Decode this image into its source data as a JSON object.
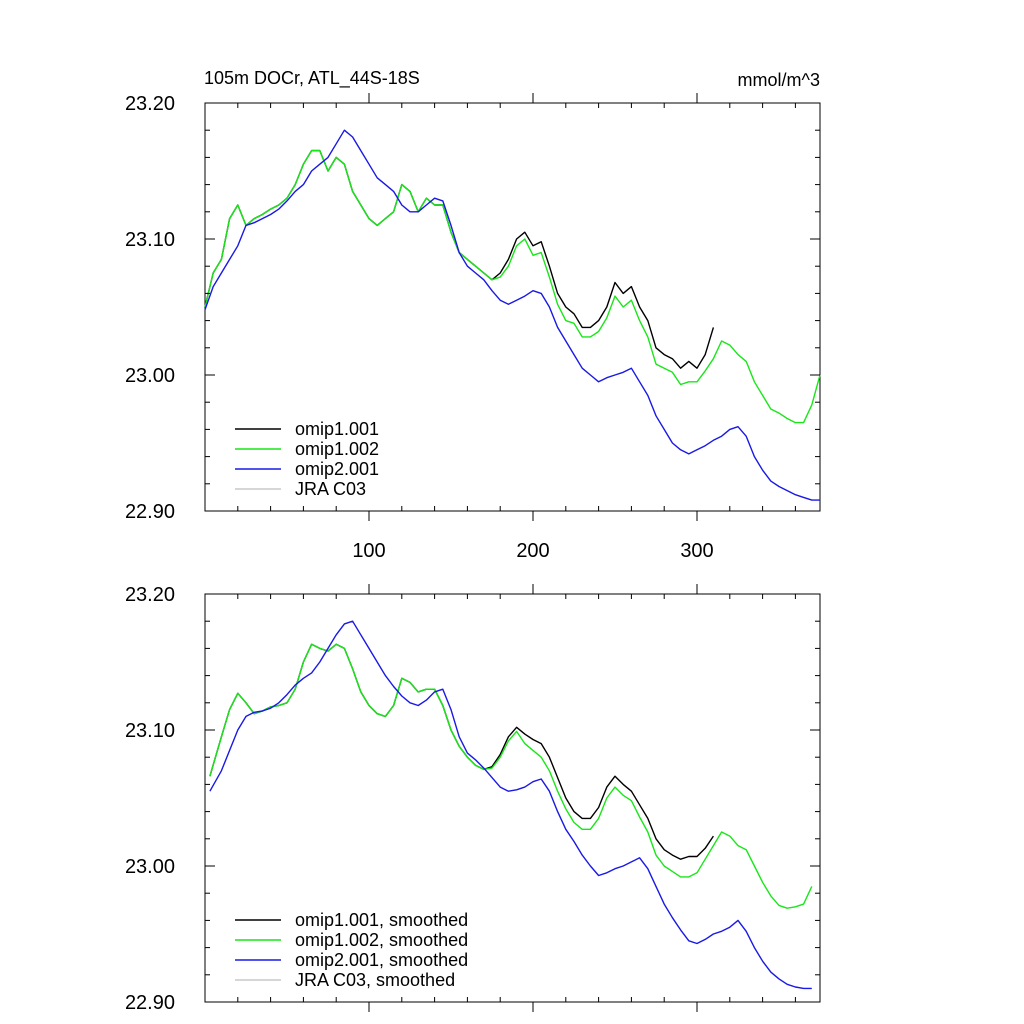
{
  "chart_data": [
    {
      "type": "line",
      "panel": "top",
      "title_left": "105m DOCr, ATL_44S-18S",
      "title_right": "mmol/m^3",
      "xlabel": "",
      "ylabel": "",
      "xlim": [
        0,
        375
      ],
      "ylim": [
        22.9,
        23.2
      ],
      "xticks": [
        100,
        200,
        300
      ],
      "xtick_labels": [
        "100",
        "200",
        "300"
      ],
      "yticks": [
        22.9,
        23.0,
        23.1,
        23.2
      ],
      "ytick_labels": [
        "22.90",
        "23.00",
        "23.10",
        "23.20"
      ],
      "legend_position": "bottom-left",
      "series": [
        {
          "name": "omip1.001",
          "color": "#000000",
          "x": [
            0,
            5,
            10,
            15,
            20,
            25,
            30,
            35,
            40,
            45,
            50,
            55,
            60,
            65,
            70,
            75,
            80,
            85,
            90,
            95,
            100,
            105,
            110,
            115,
            120,
            125,
            130,
            135,
            140,
            145,
            150,
            155,
            160,
            165,
            170,
            175,
            180,
            185,
            190,
            195,
            200,
            205,
            210,
            215,
            220,
            225,
            230,
            235,
            240,
            245,
            250,
            255,
            260,
            265,
            270,
            275,
            280,
            285,
            290,
            295,
            300,
            305,
            310
          ],
          "y": [
            23.05,
            23.075,
            23.085,
            23.115,
            23.125,
            23.11,
            23.115,
            23.118,
            23.122,
            23.125,
            23.13,
            23.14,
            23.155,
            23.165,
            23.165,
            23.15,
            23.16,
            23.155,
            23.135,
            23.125,
            23.115,
            23.11,
            23.115,
            23.12,
            23.14,
            23.135,
            23.12,
            23.13,
            23.125,
            23.125,
            23.105,
            23.09,
            23.085,
            23.08,
            23.075,
            23.07,
            23.075,
            23.085,
            23.1,
            23.105,
            23.095,
            23.098,
            23.08,
            23.06,
            23.05,
            23.045,
            23.035,
            23.035,
            23.04,
            23.05,
            23.068,
            23.06,
            23.065,
            23.05,
            23.04,
            23.02,
            23.015,
            23.012,
            23.005,
            23.01,
            23.005,
            23.015,
            23.035
          ]
        },
        {
          "name": "omip1.002",
          "color": "#19e619",
          "x": [
            0,
            5,
            10,
            15,
            20,
            25,
            30,
            35,
            40,
            45,
            50,
            55,
            60,
            65,
            70,
            75,
            80,
            85,
            90,
            95,
            100,
            105,
            110,
            115,
            120,
            125,
            130,
            135,
            140,
            145,
            150,
            155,
            160,
            165,
            170,
            175,
            180,
            185,
            190,
            195,
            200,
            205,
            210,
            215,
            220,
            225,
            230,
            235,
            240,
            245,
            250,
            255,
            260,
            265,
            270,
            275,
            280,
            285,
            290,
            295,
            300,
            305,
            310,
            315,
            320,
            325,
            330,
            335,
            340,
            345,
            350,
            355,
            360,
            365,
            370,
            375
          ],
          "y": [
            23.05,
            23.075,
            23.085,
            23.115,
            23.125,
            23.11,
            23.115,
            23.118,
            23.122,
            23.125,
            23.13,
            23.14,
            23.155,
            23.165,
            23.165,
            23.15,
            23.16,
            23.155,
            23.135,
            23.125,
            23.115,
            23.11,
            23.115,
            23.12,
            23.14,
            23.135,
            23.12,
            23.13,
            23.125,
            23.125,
            23.105,
            23.09,
            23.085,
            23.08,
            23.075,
            23.07,
            23.072,
            23.08,
            23.095,
            23.1,
            23.088,
            23.09,
            23.072,
            23.052,
            23.04,
            23.038,
            23.028,
            23.028,
            23.032,
            23.042,
            23.058,
            23.05,
            23.055,
            23.04,
            23.028,
            23.008,
            23.005,
            23.002,
            22.993,
            22.995,
            22.995,
            23.003,
            23.012,
            23.025,
            23.022,
            23.015,
            23.01,
            22.995,
            22.985,
            22.975,
            22.972,
            22.968,
            22.965,
            22.965,
            22.978,
            23.0
          ]
        },
        {
          "name": "omip2.001",
          "color": "#1919e6",
          "x": [
            0,
            5,
            10,
            15,
            20,
            25,
            30,
            35,
            40,
            45,
            50,
            55,
            60,
            65,
            70,
            75,
            80,
            85,
            90,
            95,
            100,
            105,
            110,
            115,
            120,
            125,
            130,
            135,
            140,
            145,
            150,
            155,
            160,
            165,
            170,
            175,
            180,
            185,
            190,
            195,
            200,
            205,
            210,
            215,
            220,
            225,
            230,
            235,
            240,
            245,
            250,
            255,
            260,
            265,
            270,
            275,
            280,
            285,
            290,
            295,
            300,
            305,
            310,
            315,
            320,
            325,
            330,
            335,
            340,
            345,
            350,
            355,
            360,
            365,
            370,
            375
          ],
          "y": [
            23.048,
            23.065,
            23.075,
            23.085,
            23.095,
            23.11,
            23.112,
            23.115,
            23.118,
            23.122,
            23.128,
            23.135,
            23.14,
            23.15,
            23.155,
            23.16,
            23.17,
            23.18,
            23.175,
            23.165,
            23.155,
            23.145,
            23.14,
            23.135,
            23.125,
            23.12,
            23.12,
            23.125,
            23.13,
            23.128,
            23.11,
            23.09,
            23.08,
            23.075,
            23.07,
            23.062,
            23.055,
            23.052,
            23.055,
            23.058,
            23.062,
            23.06,
            23.05,
            23.035,
            23.025,
            23.015,
            23.005,
            23.0,
            22.995,
            22.998,
            23.0,
            23.002,
            23.005,
            22.995,
            22.985,
            22.97,
            22.96,
            22.95,
            22.945,
            22.942,
            22.945,
            22.948,
            22.952,
            22.955,
            22.96,
            22.962,
            22.955,
            22.94,
            22.93,
            22.922,
            22.918,
            22.915,
            22.912,
            22.91,
            22.908,
            22.908
          ]
        },
        {
          "name": "JRA C03",
          "color": "#c8c8c8",
          "x": [],
          "y": []
        }
      ]
    },
    {
      "type": "line",
      "panel": "bottom",
      "xlabel": "",
      "ylabel": "",
      "xlim": [
        0,
        375
      ],
      "ylim": [
        22.9,
        23.2
      ],
      "xticks": [
        100,
        200,
        300
      ],
      "yticks": [
        22.9,
        23.0,
        23.1,
        23.2
      ],
      "ytick_labels": [
        "22.90",
        "23.00",
        "23.10",
        "23.20"
      ],
      "legend_position": "bottom-left",
      "series": [
        {
          "name": "omip1.001, smoothed",
          "color": "#000000",
          "x": [
            3,
            10,
            15,
            20,
            25,
            30,
            35,
            40,
            45,
            50,
            55,
            60,
            65,
            70,
            75,
            80,
            85,
            90,
            95,
            100,
            105,
            110,
            115,
            120,
            125,
            130,
            135,
            140,
            145,
            150,
            155,
            160,
            165,
            170,
            175,
            180,
            185,
            190,
            195,
            200,
            205,
            210,
            215,
            220,
            225,
            230,
            235,
            240,
            245,
            250,
            255,
            260,
            265,
            270,
            275,
            280,
            285,
            290,
            295,
            300,
            305,
            310
          ],
          "y": [
            23.066,
            23.095,
            23.115,
            23.127,
            23.12,
            23.112,
            23.114,
            23.117,
            23.118,
            23.12,
            23.13,
            23.15,
            23.163,
            23.16,
            23.158,
            23.163,
            23.16,
            23.145,
            23.128,
            23.118,
            23.112,
            23.11,
            23.118,
            23.138,
            23.135,
            23.128,
            23.13,
            23.13,
            23.118,
            23.1,
            23.088,
            23.08,
            23.074,
            23.071,
            23.073,
            23.082,
            23.095,
            23.102,
            23.097,
            23.093,
            23.09,
            23.08,
            23.065,
            23.05,
            23.04,
            23.035,
            23.035,
            23.043,
            23.058,
            23.066,
            23.06,
            23.055,
            23.045,
            23.035,
            23.02,
            23.012,
            23.008,
            23.005,
            23.007,
            23.007,
            23.013,
            23.022
          ]
        },
        {
          "name": "omip1.002, smoothed",
          "color": "#19e619",
          "x": [
            3,
            10,
            15,
            20,
            25,
            30,
            35,
            40,
            45,
            50,
            55,
            60,
            65,
            70,
            75,
            80,
            85,
            90,
            95,
            100,
            105,
            110,
            115,
            120,
            125,
            130,
            135,
            140,
            145,
            150,
            155,
            160,
            165,
            170,
            175,
            180,
            185,
            190,
            195,
            200,
            205,
            210,
            215,
            220,
            225,
            230,
            235,
            240,
            245,
            250,
            255,
            260,
            265,
            270,
            275,
            280,
            285,
            290,
            295,
            300,
            305,
            310,
            315,
            320,
            325,
            330,
            335,
            340,
            345,
            350,
            355,
            360,
            365,
            370
          ],
          "y": [
            23.066,
            23.095,
            23.115,
            23.127,
            23.12,
            23.112,
            23.114,
            23.117,
            23.118,
            23.12,
            23.13,
            23.15,
            23.163,
            23.16,
            23.158,
            23.163,
            23.16,
            23.145,
            23.128,
            23.118,
            23.112,
            23.11,
            23.118,
            23.138,
            23.135,
            23.128,
            23.13,
            23.13,
            23.118,
            23.1,
            23.088,
            23.08,
            23.074,
            23.071,
            23.072,
            23.08,
            23.092,
            23.099,
            23.09,
            23.085,
            23.08,
            23.07,
            23.055,
            23.042,
            23.032,
            23.027,
            23.027,
            23.035,
            23.05,
            23.058,
            23.052,
            23.048,
            23.036,
            23.025,
            23.008,
            23.0,
            22.996,
            22.992,
            22.992,
            22.995,
            23.005,
            23.015,
            23.025,
            23.022,
            23.015,
            23.012,
            23.0,
            22.988,
            22.978,
            22.971,
            22.969,
            22.97,
            22.972,
            22.985
          ]
        },
        {
          "name": "omip2.001, smoothed",
          "color": "#1919e6",
          "x": [
            3,
            10,
            15,
            20,
            25,
            30,
            35,
            40,
            45,
            50,
            55,
            60,
            65,
            70,
            75,
            80,
            85,
            90,
            95,
            100,
            105,
            110,
            115,
            120,
            125,
            130,
            135,
            140,
            145,
            150,
            155,
            160,
            165,
            170,
            175,
            180,
            185,
            190,
            195,
            200,
            205,
            210,
            215,
            220,
            225,
            230,
            235,
            240,
            245,
            250,
            255,
            260,
            265,
            270,
            275,
            280,
            285,
            290,
            295,
            300,
            305,
            310,
            315,
            320,
            325,
            330,
            335,
            340,
            345,
            350,
            355,
            360,
            365,
            370
          ],
          "y": [
            23.055,
            23.07,
            23.085,
            23.1,
            23.11,
            23.113,
            23.114,
            23.116,
            23.12,
            23.126,
            23.133,
            23.138,
            23.142,
            23.15,
            23.16,
            23.17,
            23.178,
            23.18,
            23.17,
            23.16,
            23.15,
            23.14,
            23.132,
            23.125,
            23.12,
            23.118,
            23.122,
            23.128,
            23.13,
            23.115,
            23.095,
            23.083,
            23.078,
            23.072,
            23.065,
            23.058,
            23.055,
            23.056,
            23.058,
            23.062,
            23.064,
            23.055,
            23.04,
            23.027,
            23.018,
            23.008,
            23.0,
            22.993,
            22.995,
            22.998,
            23.0,
            23.003,
            23.006,
            22.998,
            22.985,
            22.972,
            22.962,
            22.953,
            22.945,
            22.943,
            22.946,
            22.95,
            22.952,
            22.955,
            22.96,
            22.952,
            22.94,
            22.93,
            22.922,
            22.917,
            22.913,
            22.911,
            22.91,
            22.91
          ]
        },
        {
          "name": "JRA C03, smoothed",
          "color": "#c8c8c8",
          "x": [],
          "y": []
        }
      ]
    }
  ]
}
